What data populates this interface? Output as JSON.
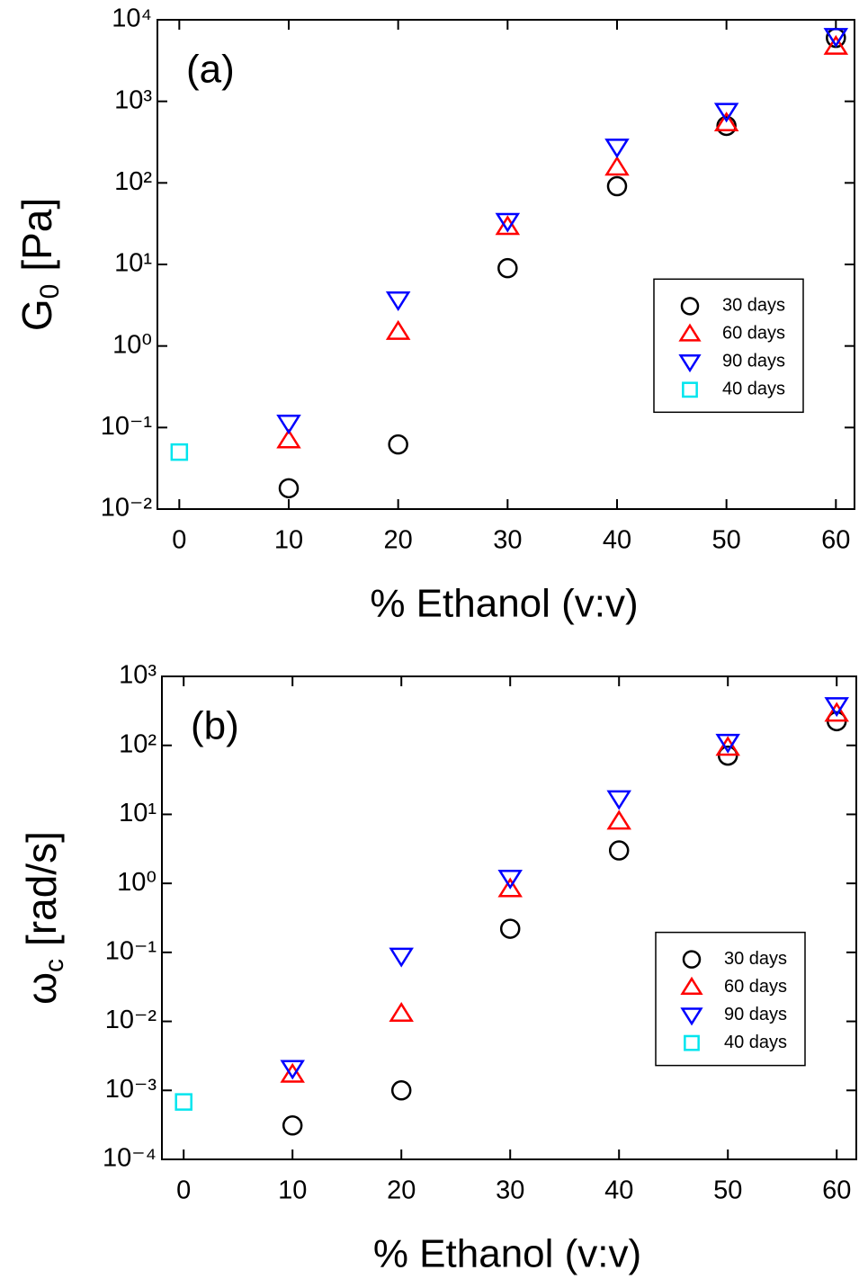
{
  "chart_data": [
    {
      "type": "scatter",
      "annotation": "(a)",
      "xlabel": "% Ethanol (v:v)",
      "ylabel": {
        "symbol": "G",
        "subscript": "0",
        "unit": "[Pa]"
      },
      "x": [
        0,
        10,
        20,
        30,
        40,
        50,
        60
      ],
      "xlim": [
        -2,
        61.7
      ],
      "xticks": [
        0,
        10,
        20,
        30,
        40,
        50,
        60
      ],
      "ylim": [
        0.01,
        10000
      ],
      "log_y": true,
      "yticks": [
        {
          "value": 0.01,
          "label": "10⁻²"
        },
        {
          "value": 0.1,
          "label": "10⁻¹"
        },
        {
          "value": 1,
          "label": "10⁰"
        },
        {
          "value": 10,
          "label": "10¹"
        },
        {
          "value": 100,
          "label": "10²"
        },
        {
          "value": 1000,
          "label": "10³"
        },
        {
          "value": 10000,
          "label": "10⁴"
        }
      ],
      "legend": "right",
      "series": [
        {
          "name": "30 days",
          "color": "#000000",
          "marker": "circle",
          "values": [
            null,
            0.018,
            0.062,
            9,
            91,
            500,
            6000
          ]
        },
        {
          "name": "60 days",
          "color": "#ff0000",
          "marker": "triangle-up",
          "values": [
            null,
            0.07,
            1.5,
            29,
            155,
            540,
            4700
          ]
        },
        {
          "name": "90 days",
          "color": "#0000ff",
          "marker": "triangle-down",
          "values": [
            null,
            0.114,
            3.7,
            34,
            277,
            760,
            6300
          ]
        },
        {
          "name": "40 days",
          "color": "#00e5ee",
          "marker": "square",
          "values": [
            0.05,
            null,
            null,
            null,
            null,
            null,
            null
          ]
        }
      ]
    },
    {
      "type": "scatter",
      "annotation": "(b)",
      "xlabel": "% Ethanol (v:v)",
      "ylabel": {
        "symbol": "ω",
        "subscript": "c",
        "unit": "[rad/s]"
      },
      "x": [
        0,
        10,
        20,
        30,
        40,
        50,
        60
      ],
      "xlim": [
        -2,
        61.8
      ],
      "xticks": [
        0,
        10,
        20,
        30,
        40,
        50,
        60
      ],
      "ylim": [
        0.0001,
        1000
      ],
      "log_y": true,
      "yticks": [
        {
          "value": 0.0001,
          "label": "10⁻⁴"
        },
        {
          "value": 0.001,
          "label": "10⁻³"
        },
        {
          "value": 0.01,
          "label": "10⁻²"
        },
        {
          "value": 0.1,
          "label": "10⁻¹"
        },
        {
          "value": 1,
          "label": "10⁰"
        },
        {
          "value": 10,
          "label": "10¹"
        },
        {
          "value": 100,
          "label": "10²"
        },
        {
          "value": 1000,
          "label": "10³"
        }
      ],
      "legend": "right",
      "series": [
        {
          "name": "30 days",
          "color": "#000000",
          "marker": "circle",
          "values": [
            null,
            0.00031,
            0.001,
            0.22,
            3,
            71,
            224
          ]
        },
        {
          "name": "60 days",
          "color": "#ff0000",
          "marker": "triangle-up",
          "values": [
            null,
            0.0017,
            0.013,
            0.83,
            7.9,
            93,
            290
          ]
        },
        {
          "name": "90 days",
          "color": "#0000ff",
          "marker": "triangle-down",
          "values": [
            null,
            0.0021,
            0.089,
            1.2,
            17,
            112,
            380
          ]
        },
        {
          "name": "40 days",
          "color": "#00e5ee",
          "marker": "square",
          "values": [
            0.00068,
            null,
            null,
            null,
            null,
            null,
            null
          ]
        }
      ]
    }
  ]
}
